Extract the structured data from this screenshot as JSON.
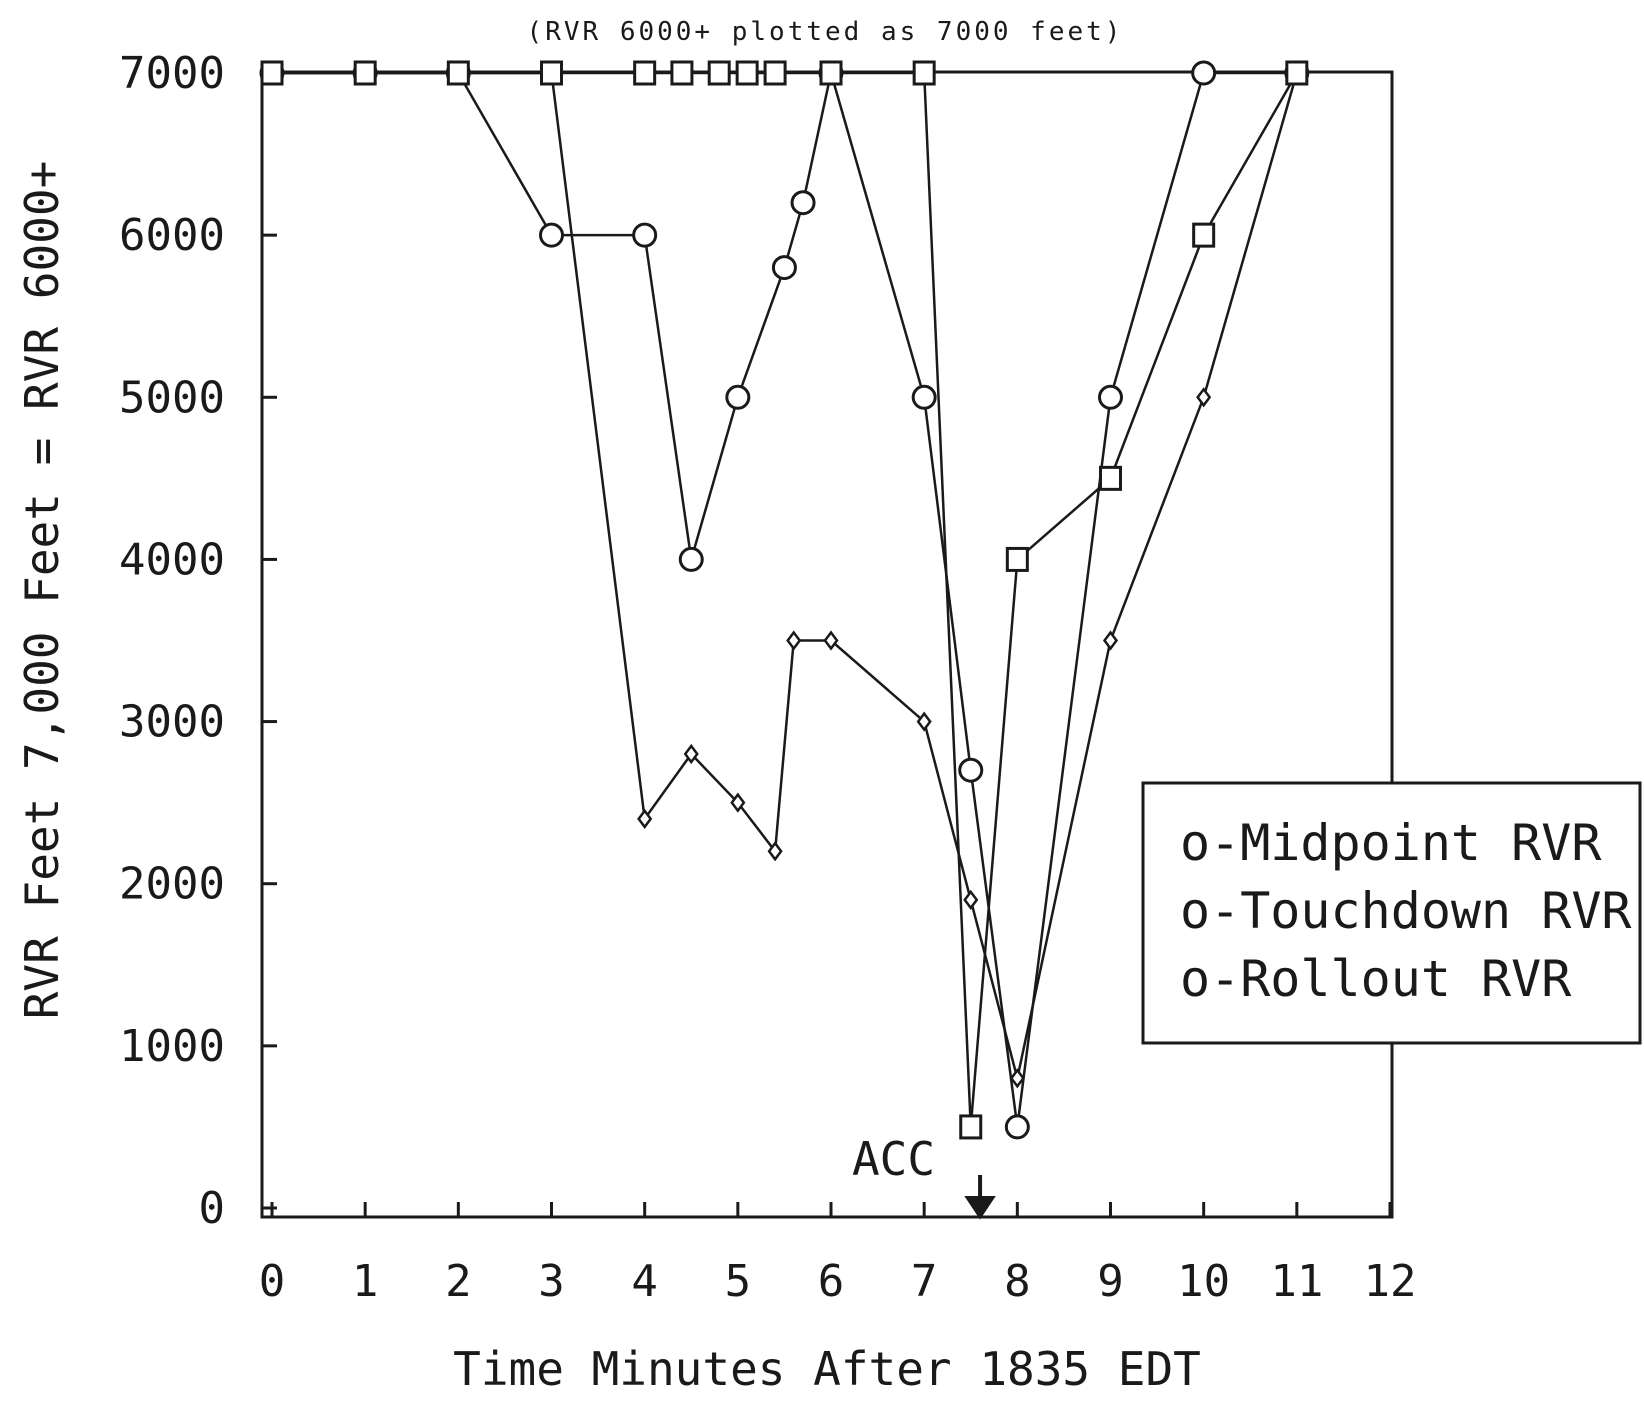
{
  "chart_data": {
    "type": "line",
    "title": "",
    "annotation": "(RVR 6000+ plotted as 7000 feet)",
    "xlabel": "Time Minutes After 1835 EDT",
    "ylabel": "RVR Feet  7,000 Feet = RVR 6000+",
    "xlim": [
      0,
      12
    ],
    "ylim": [
      0,
      7000
    ],
    "x_ticks": [
      0,
      1,
      2,
      3,
      4,
      5,
      6,
      7,
      8,
      9,
      10,
      11,
      12
    ],
    "x_tick_labels": [
      "0",
      "1",
      "2",
      "3",
      "4",
      "5",
      "6",
      "7",
      "8",
      "9",
      "10",
      "11",
      "12"
    ],
    "y_ticks": [
      0,
      1000,
      2000,
      3000,
      4000,
      5000,
      6000,
      7000
    ],
    "y_tick_labels": [
      "0",
      "1000",
      "2000",
      "3000",
      "4000",
      "5000",
      "6000",
      "7000"
    ],
    "grid": false,
    "legend_position": "right",
    "event_marker": {
      "label": "ACC",
      "x": 7.6
    },
    "series": [
      {
        "name": "Midpoint RVR",
        "legend_label": "o-Midpoint RVR",
        "marker": "circle",
        "color": "#1a1a1a",
        "points": [
          [
            0,
            7000
          ],
          [
            1,
            7000
          ],
          [
            2,
            7000
          ],
          [
            3,
            6000
          ],
          [
            4,
            6000
          ],
          [
            4.5,
            4000
          ],
          [
            5,
            5000
          ],
          [
            5.5,
            5800
          ],
          [
            5.7,
            6200
          ],
          [
            6,
            7000
          ],
          [
            7,
            5000
          ],
          [
            7.5,
            2700
          ],
          [
            8,
            500
          ],
          [
            9,
            5000
          ],
          [
            10,
            7000
          ],
          [
            11,
            7000
          ]
        ]
      },
      {
        "name": "Touchdown RVR",
        "legend_label": "o-Touchdown RVR",
        "marker": "diamond",
        "color": "#1a1a1a",
        "points": [
          [
            0,
            7000
          ],
          [
            1,
            7000
          ],
          [
            2,
            7000
          ],
          [
            3,
            7000
          ],
          [
            4,
            2400
          ],
          [
            4.5,
            2800
          ],
          [
            5,
            2500
          ],
          [
            5.4,
            2200
          ],
          [
            5.6,
            3500
          ],
          [
            6,
            3500
          ],
          [
            7,
            3000
          ],
          [
            7.5,
            1900
          ],
          [
            8,
            800
          ],
          [
            9,
            3500
          ],
          [
            10,
            5000
          ],
          [
            11,
            7000
          ]
        ]
      },
      {
        "name": "Rollout RVR",
        "legend_label": "o-Rollout RVR",
        "marker": "square",
        "color": "#1a1a1a",
        "points": [
          [
            0,
            7000
          ],
          [
            1,
            7000
          ],
          [
            2,
            7000
          ],
          [
            3,
            7000
          ],
          [
            4,
            7000
          ],
          [
            4.4,
            7000
          ],
          [
            4.8,
            7000
          ],
          [
            5.1,
            7000
          ],
          [
            5.4,
            7000
          ],
          [
            6,
            7000
          ],
          [
            7,
            7000
          ],
          [
            7.5,
            500
          ],
          [
            8,
            4000
          ],
          [
            9,
            4500
          ],
          [
            10,
            6000
          ],
          [
            11,
            7000
          ]
        ]
      }
    ]
  }
}
